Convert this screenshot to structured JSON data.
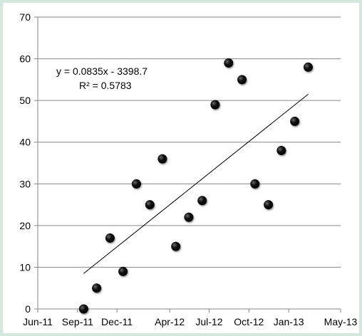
{
  "chart_data": {
    "type": "scatter",
    "title": "",
    "xlabel": "",
    "ylabel": "",
    "x_axis_type": "date",
    "xlim": [
      "2011-06-01",
      "2013-05-01"
    ],
    "ylim": [
      0,
      70
    ],
    "grid": "horizontal",
    "legend": "none",
    "x_ticks": [
      "2011-06-01",
      "2011-09-01",
      "2011-12-01",
      "2012-04-01",
      "2012-07-01",
      "2012-10-01",
      "2013-01-01",
      "2013-05-01"
    ],
    "x_tick_labels": [
      "Jun-11",
      "Sep-11",
      "Dec-11",
      "Apr-12",
      "Jul-12",
      "Oct-12",
      "Jan-13",
      "May-13"
    ],
    "y_ticks": [
      0,
      10,
      20,
      30,
      40,
      50,
      60,
      70
    ],
    "y_tick_labels": [
      "0",
      "10",
      "20",
      "30",
      "40",
      "50",
      "60",
      "70"
    ],
    "points": [
      {
        "x": "2011-09-15",
        "y": 0
      },
      {
        "x": "2011-10-15",
        "y": 5
      },
      {
        "x": "2011-11-15",
        "y": 17
      },
      {
        "x": "2011-12-15",
        "y": 9
      },
      {
        "x": "2012-01-15",
        "y": 30
      },
      {
        "x": "2012-02-15",
        "y": 25
      },
      {
        "x": "2012-03-15",
        "y": 36
      },
      {
        "x": "2012-04-15",
        "y": 15
      },
      {
        "x": "2012-05-15",
        "y": 22
      },
      {
        "x": "2012-06-15",
        "y": 26
      },
      {
        "x": "2012-07-15",
        "y": 49
      },
      {
        "x": "2012-08-15",
        "y": 59
      },
      {
        "x": "2012-09-15",
        "y": 55
      },
      {
        "x": "2012-10-15",
        "y": 30
      },
      {
        "x": "2012-11-15",
        "y": 25
      },
      {
        "x": "2012-12-15",
        "y": 38
      },
      {
        "x": "2013-01-15",
        "y": 45
      },
      {
        "x": "2013-02-15",
        "y": 58
      }
    ],
    "trendline": {
      "type": "linear",
      "from": {
        "x": "2011-09-15",
        "y": 8.5
      },
      "to": {
        "x": "2013-02-15",
        "y": 51.5
      },
      "equation": "y = 0.0835x - 3398.7",
      "r_squared": "R² = 0.5783"
    },
    "colors": {
      "point": "#000000",
      "trendline": "#000000",
      "grid": "#868686",
      "background": "#ffffff"
    }
  }
}
